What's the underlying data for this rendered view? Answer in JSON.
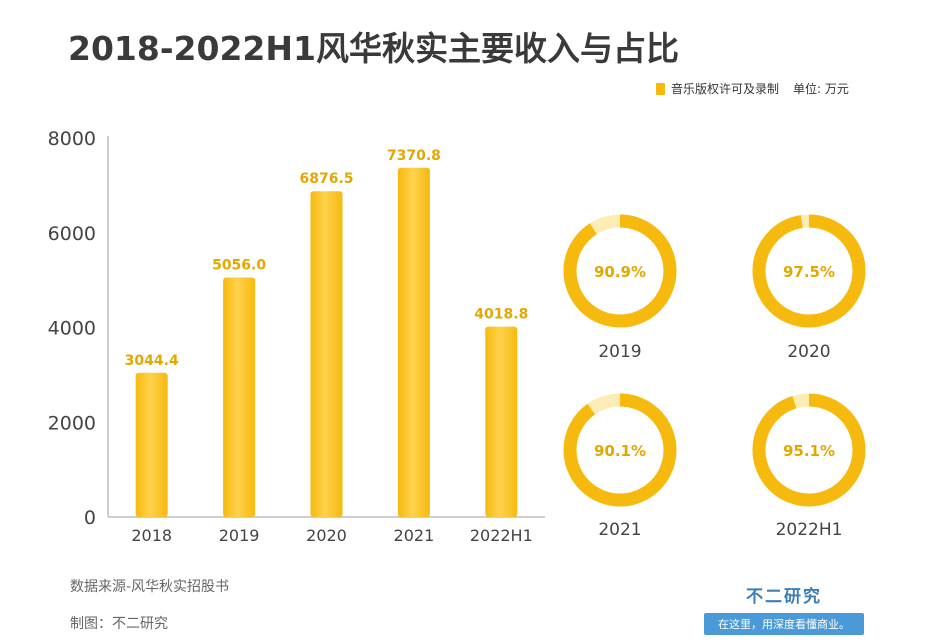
{
  "title": "2018-2022H1风华秋实主要收入与占比",
  "legend": {
    "series_name": "音乐版权许可及录制",
    "unit": "单位: 万元"
  },
  "colors": {
    "bar": "#f6b90d",
    "bar_light": "#ffd24d",
    "ring_track": "#fdedb5",
    "value_label": "#e3a800"
  },
  "chart_data": [
    {
      "type": "bar",
      "categories": [
        "2018",
        "2019",
        "2020",
        "2021",
        "2022H1"
      ],
      "series": [
        {
          "name": "音乐版权许可及录制",
          "values": [
            3044.4,
            5056.0,
            6876.5,
            7370.8,
            4018.8
          ]
        }
      ],
      "value_labels": [
        "3044.4",
        "5056.0",
        "6876.5",
        "7370.8",
        "4018.8"
      ],
      "yticks": [
        0,
        2000,
        4000,
        6000,
        8000
      ],
      "ylim": [
        0,
        8000
      ],
      "title": "",
      "xlabel": "",
      "ylabel": "",
      "grid": false
    },
    {
      "type": "pie",
      "subtype": "donut",
      "categories": [
        "2019",
        "2020",
        "2021",
        "2022H1"
      ],
      "values": [
        90.9,
        97.5,
        90.1,
        95.1
      ],
      "value_labels": [
        "90.9%",
        "97.5%",
        "90.1%",
        "95.1%"
      ]
    }
  ],
  "footer": {
    "source": "数据来源-风华秋实招股书",
    "maker": "制图：不二研究"
  },
  "brand": {
    "name": "不二研究",
    "slogan": "在这里，用深度看懂商业。"
  }
}
